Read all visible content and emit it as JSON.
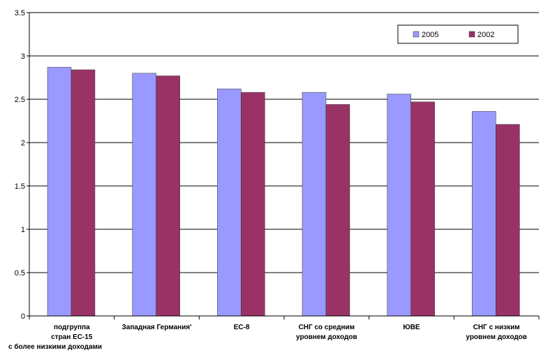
{
  "chart_data": {
    "type": "bar",
    "title": "",
    "xlabel": "",
    "ylabel": "",
    "ylim": [
      0,
      3.5
    ],
    "yticks": [
      "0",
      "0.5",
      "1",
      "1.5",
      "2",
      "2.5",
      "3",
      "3.5"
    ],
    "grid": true,
    "legend_position": "top-right",
    "categories": [
      [
        "подгруппа",
        "стран ЕС-15",
        "с более низкими доходами"
      ],
      [
        "Западная Германия'"
      ],
      [
        "ЕС-8"
      ],
      [
        "СНГ со средним",
        "уровнем доходов"
      ],
      [
        "ЮВЕ"
      ],
      [
        "СНГ с низким",
        "уровнем доходов"
      ]
    ],
    "series": [
      {
        "name": "2005",
        "color": "#9999ff",
        "values": [
          2.87,
          2.8,
          2.62,
          2.58,
          2.56,
          2.36
        ]
      },
      {
        "name": "2002",
        "color": "#993366",
        "values": [
          2.84,
          2.77,
          2.58,
          2.44,
          2.47,
          2.21
        ]
      }
    ]
  }
}
